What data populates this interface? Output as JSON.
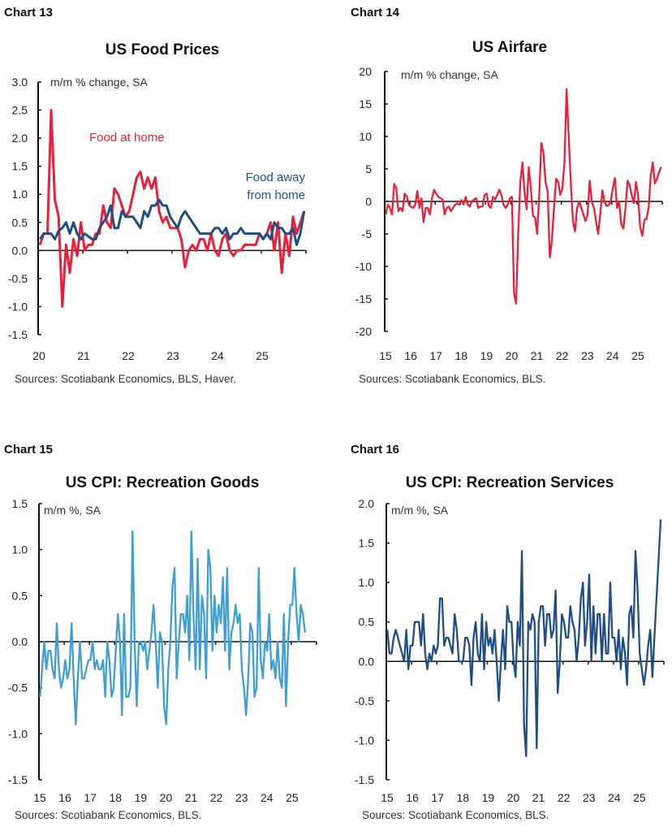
{
  "chart_data": [
    {
      "id": "c13",
      "chart_label": "Chart 13",
      "type": "line",
      "title": "US Food Prices",
      "ylabel": "m/m % change, SA",
      "source": "Sources: Scotiabank Economics, BLS, Haver.",
      "ylim": [
        -1.5,
        3.0
      ],
      "ytick_step": 0.5,
      "ytick_decimals": 1,
      "xlim": [
        "2020-01",
        "2025-12"
      ],
      "xtick_labels": [
        "20",
        "21",
        "22",
        "23",
        "24",
        "25"
      ],
      "frequency": "monthly",
      "start": "2020-01",
      "series": [
        {
          "name": "Food at home",
          "color": "#e8203a",
          "values": [
            0.1,
            0.3,
            0.3,
            2.5,
            0.9,
            0.6,
            -1.0,
            0.1,
            -0.4,
            0.2,
            -0.1,
            0.5,
            0.0,
            0.1,
            0.1,
            0.3,
            0.3,
            0.8,
            0.5,
            0.4,
            1.1,
            1.0,
            0.8,
            0.6,
            0.7,
            1.0,
            1.3,
            1.4,
            1.1,
            1.3,
            1.1,
            1.3,
            0.7,
            0.5,
            0.6,
            0.4,
            0.4,
            0.4,
            0.2,
            -0.3,
            0.0,
            0.1,
            0.0,
            0.2,
            0.2,
            0.0,
            0.3,
            0.0,
            -0.1,
            0.2,
            0.3,
            0.0,
            -0.1,
            0.0,
            0.0,
            0.1,
            0.1,
            0.1,
            0.1,
            0.3,
            0.2,
            0.3,
            0.5,
            0.0,
            0.5,
            -0.4,
            0.3,
            -0.1,
            0.6,
            0.3,
            0.5,
            0.7
          ]
        },
        {
          "name": "Food away from home",
          "color": "#1f4e86",
          "values": [
            0.2,
            0.3,
            0.3,
            0.3,
            0.2,
            0.35,
            0.4,
            0.5,
            0.3,
            0.5,
            0.3,
            0.2,
            0.3,
            0.25,
            0.2,
            0.2,
            0.4,
            0.5,
            0.6,
            0.8,
            0.4,
            0.4,
            0.7,
            0.6,
            0.6,
            0.6,
            0.5,
            0.4,
            0.7,
            0.6,
            0.8,
            0.8,
            0.9,
            0.8,
            0.8,
            0.6,
            0.5,
            0.4,
            0.6,
            0.7,
            0.6,
            0.5,
            0.4,
            0.3,
            0.3,
            0.3,
            0.3,
            0.4,
            0.4,
            0.3,
            0.4,
            0.2,
            0.3,
            0.3,
            0.4,
            0.3,
            0.3,
            0.3,
            0.3,
            0.3,
            0.2,
            0.3,
            0.2,
            0.5,
            0.4,
            0.4,
            0.3,
            0.3,
            0.4,
            0.1,
            0.3,
            0.7
          ]
        }
      ],
      "annotations": [
        {
          "text": "Food at home",
          "color": "#e8203a"
        },
        {
          "text": "Food away",
          "color": "#1f4e86"
        },
        {
          "text": "from home",
          "color": "#1f4e86"
        }
      ]
    },
    {
      "id": "c14",
      "chart_label": "Chart 14",
      "type": "line",
      "title": "US Airfare",
      "ylabel": "m/m % change, SA",
      "source": "Sources: Scotiabank Economics, BLS.",
      "ylim": [
        -20,
        20
      ],
      "ytick_step": 5,
      "ytick_decimals": 0,
      "xlim": [
        "2015-01",
        "2025-12"
      ],
      "xtick_labels": [
        "15",
        "16",
        "17",
        "18",
        "19",
        "20",
        "21",
        "22",
        "23",
        "24",
        "25"
      ],
      "frequency": "monthly",
      "start": "2015-01",
      "series": [
        {
          "color": "#e8203a",
          "values": [
            -2,
            -0.5,
            -1,
            -2,
            2.7,
            2,
            -1.5,
            -1,
            -1.5,
            1.2,
            0.8,
            -0.5,
            -0.8,
            -1,
            -0.5,
            1.6,
            -1,
            0.5,
            -3.2,
            -1,
            -1,
            -2,
            0.5,
            1.8,
            1.2,
            0.7,
            0.5,
            0.3,
            -2,
            -1,
            -0.8,
            -1.5,
            -1,
            -0.5,
            -0.3,
            -0.5,
            0.2,
            -0.5,
            0.7,
            -0.5,
            -0.8,
            0,
            0.3,
            0.5,
            -1,
            -0.8,
            -0.8,
            1,
            1.2,
            -0.7,
            -1,
            0.7,
            0.3,
            1,
            1.8,
            1,
            -0.5,
            -1,
            -0.5,
            0.5,
            0.7,
            -14,
            -15.7,
            -5,
            3,
            6,
            1.5,
            -1.2,
            5.3,
            2,
            -2.2,
            -2.5,
            -5,
            1,
            9,
            7.5,
            3,
            1.5,
            -8.6,
            -6,
            -1,
            3.5,
            3,
            1,
            2,
            6,
            17.3,
            10,
            3,
            -3,
            -4.6,
            -1,
            0,
            -1,
            -2,
            -3,
            -2,
            3.2,
            0,
            -1,
            -3,
            -5,
            -2,
            1.7,
            0,
            -0.7,
            -0.6,
            0,
            2,
            3.6,
            -1,
            0,
            -3.5,
            -4.2,
            -1,
            3.2,
            2.5,
            1,
            -0.3,
            3,
            1,
            -4,
            -5.3,
            -2.8,
            -2.7,
            -1,
            4,
            6,
            2.8,
            3.5,
            4.5,
            5.3
          ]
        }
      ]
    },
    {
      "id": "c15",
      "chart_label": "Chart 15",
      "type": "line",
      "title": "US CPI: Recreation Goods",
      "ylabel": "m/m %, SA",
      "source": "Sources: Scotiabank Economics, BLS.",
      "ylim": [
        -1.5,
        1.5
      ],
      "ytick_step": 0.5,
      "ytick_decimals": 1,
      "xlim": [
        "2015-01",
        "2025-12"
      ],
      "xtick_labels": [
        "15",
        "16",
        "17",
        "18",
        "19",
        "20",
        "21",
        "22",
        "23",
        "24",
        "25"
      ],
      "frequency": "monthly",
      "start": "2015-01",
      "series": [
        {
          "color": "#3f9fd3",
          "values": [
            -0.6,
            -0.3,
            0,
            -0.3,
            -0.1,
            -0.1,
            -0.3,
            -0.4,
            0.2,
            -0.3,
            -0.5,
            -0.4,
            -0.2,
            -0.4,
            -0.3,
            0.2,
            -0.4,
            -0.9,
            -0.4,
            0,
            -0.4,
            -0.4,
            -0.3,
            -0.2,
            -0.2,
            0,
            -0.3,
            -0.2,
            -0.3,
            -0.3,
            -0.2,
            -0.6,
            0,
            -0.2,
            -0.6,
            -0.5,
            -0.1,
            0.3,
            0,
            -0.8,
            0.3,
            -0.6,
            -0.6,
            -0.5,
            1.2,
            0,
            -0.7,
            0,
            0,
            -0.1,
            0,
            -0.3,
            -0.1,
            0.1,
            0.4,
            0,
            -0.5,
            0.1,
            0,
            -0.7,
            -0.9,
            -0.3,
            0,
            0.6,
            0.8,
            -0.4,
            0,
            0.3,
            0.3,
            0.1,
            0.5,
            -0.2,
            1.2,
            0.3,
            -0.3,
            0.9,
            -0.3,
            0.5,
            0.3,
            -0.4,
            1.0,
            0.8,
            -0.1,
            0.5,
            0.1,
            0.4,
            0.2,
            0.7,
            -0.1,
            0.8,
            -0.3,
            0.1,
            0.2,
            0.4,
            0.2,
            0.3,
            -0.3,
            -0.5,
            -0.8,
            -0.4,
            0.2,
            0.1,
            -0.6,
            -0.5,
            0.8,
            -0.2,
            -0.4,
            0,
            -0.1,
            0.3,
            -0.3,
            -0.2,
            -0.4,
            0,
            -0.4,
            -0.5,
            0.3,
            -0.7,
            0,
            0.4,
            0.4,
            0.8,
            0.3,
            0,
            0.4,
            0.3,
            0.1
          ]
        }
      ]
    },
    {
      "id": "c16",
      "chart_label": "Chart 16",
      "type": "line",
      "title": "US CPI: Recreation Services",
      "ylabel": "m/m %, SA",
      "source": "Sources: Scotiabank Economics, BLS.",
      "ylim": [
        -1.5,
        2.0
      ],
      "ytick_step": 0.5,
      "ytick_decimals": 1,
      "xlim": [
        "2015-01",
        "2025-12"
      ],
      "xtick_labels": [
        "15",
        "16",
        "17",
        "18",
        "19",
        "20",
        "21",
        "22",
        "23",
        "24",
        "25"
      ],
      "frequency": "monthly",
      "start": "2015-01",
      "series": [
        {
          "color": "#1f4e86",
          "values": [
            0.4,
            0.1,
            0.1,
            0.3,
            0.4,
            0.3,
            0.2,
            0.1,
            0,
            0.4,
            -0.1,
            0.2,
            0.2,
            0.5,
            0.5,
            0.5,
            0.2,
            0.6,
            0.1,
            -0.1,
            0.1,
            0,
            0.2,
            0.1,
            0.2,
            0.8,
            0.8,
            0.2,
            0.3,
            0.3,
            0.2,
            0.1,
            0.6,
            0.4,
            0,
            0,
            0,
            0.3,
            0.3,
            0.2,
            -0.3,
            0.3,
            0.5,
            0.1,
            0,
            0.6,
            -0.1,
            0.5,
            0.2,
            0.3,
            0.1,
            0.4,
            0,
            -0.5,
            0,
            0.4,
            -0.1,
            0.7,
            0.5,
            0.5,
            0,
            -0.2,
            0.5,
            0.2,
            1.4,
            -0.8,
            -1.2,
            0.5,
            0.4,
            0.6,
            0.5,
            -1.1,
            0.5,
            0.7,
            0.7,
            0.2,
            0.6,
            0.6,
            0.3,
            0.4,
            0.9,
            -0.4,
            0,
            0.6,
            0.5,
            0.3,
            0.3,
            0.7,
            0.5,
            0.4,
            0,
            0.3,
            0.8,
            1.0,
            0.2,
            0.5,
            1.1,
            0,
            0.7,
            0.1,
            0.6,
            0.6,
            0,
            0.6,
            0.1,
            0.1,
            1.0,
            0.3,
            0.3,
            0,
            0.4,
            -0.1,
            0.3,
            0.1,
            -0.3,
            0.6,
            0.7,
            0.3,
            1.4,
            0.9,
            0.1,
            -0.1,
            -0.3,
            -0.1,
            0.2,
            0.4,
            -0.2,
            0.3,
            0.8,
            1.3,
            1.8
          ]
        }
      ]
    }
  ]
}
